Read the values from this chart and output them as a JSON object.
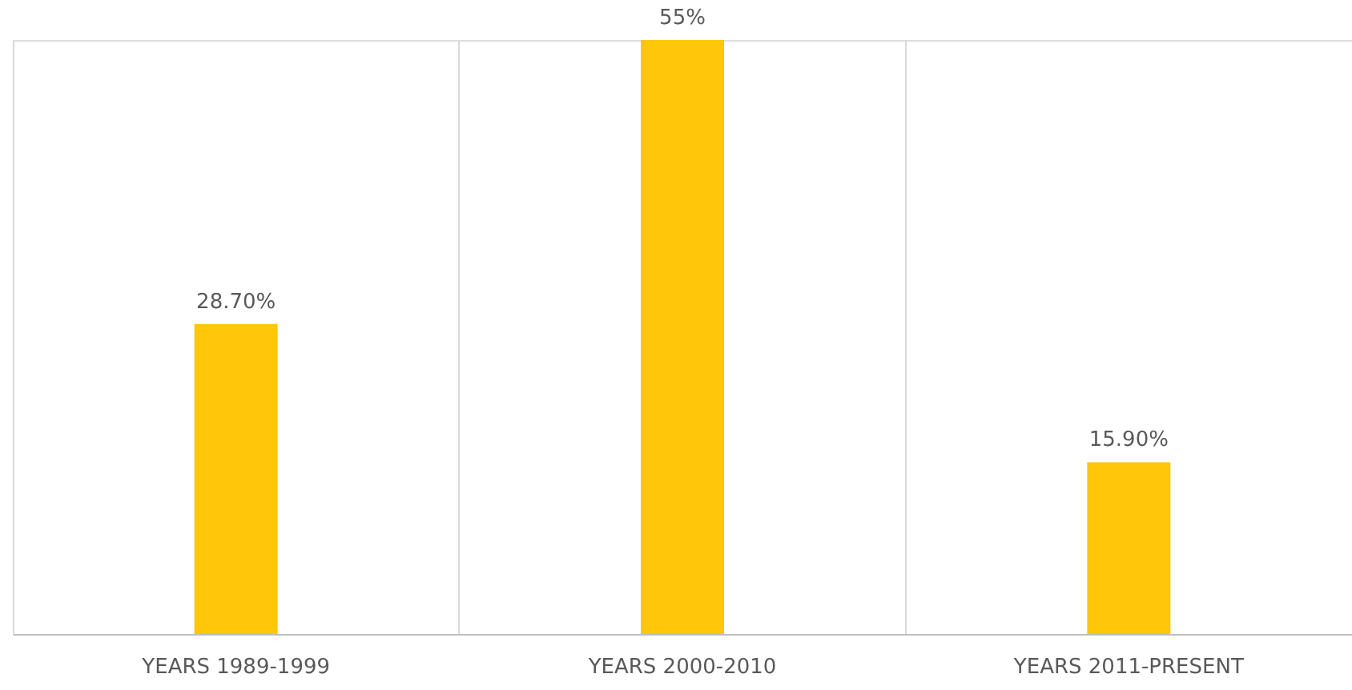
{
  "chart_data": {
    "type": "bar",
    "categories": [
      "YEARS 1989-1999",
      "YEARS 2000-2010",
      "YEARS 2011-PRESENT"
    ],
    "values": [
      28.7,
      55,
      15.9
    ],
    "value_labels": [
      "28.70%",
      "55%",
      "15.90%"
    ],
    "color": "#ffc60a",
    "grid": "x"
  }
}
